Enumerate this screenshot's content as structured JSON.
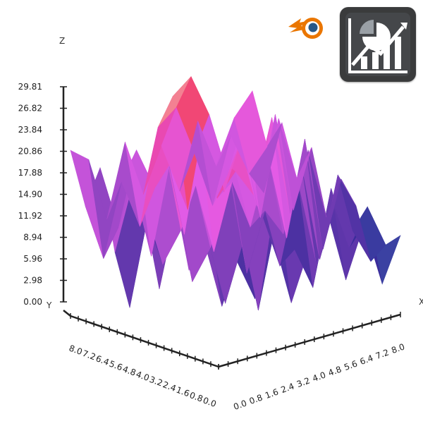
{
  "colors": {
    "background": "#ffffff",
    "axis": "#222222",
    "surface_low": "#3ff0e6",
    "surface_mid_low": "#3a2c9a",
    "surface_mid": "#e45ce8",
    "surface_mid_high": "#f0306a",
    "surface_high": "#f7f0c8",
    "blender_orange": "#ea7600",
    "blender_blue": "#265787",
    "badge_bg": "#3a3b3c"
  },
  "icons": {
    "logo": "blender-logo-icon",
    "badge": "chart-analytics-icon"
  },
  "chart_data": {
    "type": "surface3d",
    "axes": {
      "z": {
        "label": "Z",
        "range": [
          0,
          29.81
        ],
        "ticks": [
          "0.00",
          "2.98",
          "5.96",
          "8.94",
          "11.92",
          "14.90",
          "17.88",
          "20.86",
          "23.84",
          "26.82",
          "29.81"
        ]
      },
      "y": {
        "label": "Y",
        "range": [
          0,
          8.0
        ],
        "ticks": [
          "8.0",
          "7.2",
          "6.4",
          "5.6",
          "4.8",
          "4.0",
          "3.2",
          "2.4",
          "1.6",
          "0.8",
          "0.0"
        ]
      },
      "x": {
        "label": "X",
        "range": [
          0,
          8.0
        ],
        "ticks": [
          "0.0",
          "0.8",
          "1.6",
          "2.4",
          "3.2",
          "4.0",
          "4.8",
          "5.6",
          "6.4",
          "7.2",
          "8.0"
        ]
      }
    },
    "grid": false,
    "x": [
      0.0,
      0.8,
      1.6,
      2.4,
      3.2,
      4.0,
      4.8,
      5.6,
      6.4,
      7.2,
      8.0
    ],
    "y": [
      0.0,
      0.8,
      1.6,
      2.4,
      3.2,
      4.0,
      4.8,
      5.6,
      6.4,
      7.2,
      8.0
    ],
    "z": [
      [
        21,
        19,
        10,
        20,
        12,
        18,
        11,
        20,
        13,
        19,
        22
      ],
      [
        14,
        6,
        16,
        9,
        22,
        24,
        17,
        9,
        18,
        12,
        15
      ],
      [
        20,
        11,
        21,
        15,
        27,
        29,
        23,
        14,
        22,
        10,
        19
      ],
      [
        9,
        18,
        7,
        19,
        12,
        25,
        13,
        20,
        8,
        21,
        12
      ],
      [
        2,
        14,
        22,
        10,
        24,
        19,
        21,
        11,
        23,
        9,
        17
      ],
      [
        16,
        8,
        12,
        25,
        15,
        18,
        14,
        24,
        10,
        18,
        8
      ],
      [
        6,
        17,
        19,
        9,
        18,
        11,
        20,
        8,
        21,
        5,
        14
      ],
      [
        20,
        7,
        11,
        21,
        6,
        14,
        10,
        19,
        5,
        16,
        11
      ],
      [
        10,
        18,
        4,
        12,
        15,
        7,
        18,
        6,
        13,
        9,
        4
      ],
      [
        15,
        5,
        16,
        3,
        19,
        10,
        4,
        17,
        8,
        13,
        7
      ],
      [
        21,
        12,
        6,
        14,
        4,
        11,
        15,
        5,
        12,
        3,
        9
      ]
    ]
  }
}
